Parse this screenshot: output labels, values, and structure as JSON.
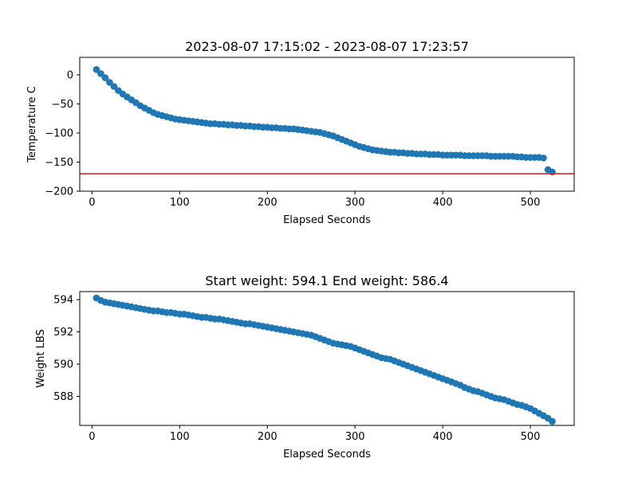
{
  "figure": {
    "background": "#ffffff"
  },
  "chart_data": [
    {
      "type": "scatter",
      "title": "2023-08-07 17:15:02 - 2023-08-07 17:23:57",
      "xlabel": "Elapsed Seconds",
      "ylabel": "Temperature C",
      "xlim": [
        -14,
        550
      ],
      "ylim": [
        -200,
        30
      ],
      "xticks": [
        0,
        100,
        200,
        300,
        400,
        500
      ],
      "yticks": [
        0,
        -50,
        -100,
        -150,
        -200
      ],
      "grid": false,
      "marker_color": "#1f77b4",
      "reference_line": {
        "y": -170,
        "color": "#d62728"
      },
      "series": [
        {
          "x": [
            5,
            10,
            15,
            20,
            25,
            30,
            35,
            40,
            45,
            50,
            55,
            60,
            65,
            70,
            75,
            80,
            85,
            90,
            95,
            100,
            105,
            110,
            115,
            120,
            125,
            130,
            135,
            140,
            145,
            150,
            155,
            160,
            165,
            170,
            175,
            180,
            185,
            190,
            195,
            200,
            205,
            210,
            215,
            220,
            225,
            230,
            235,
            240,
            245,
            250,
            255,
            260,
            265,
            270,
            275,
            280,
            285,
            290,
            295,
            300,
            305,
            310,
            315,
            320,
            325,
            330,
            335,
            340,
            345,
            350,
            355,
            360,
            365,
            370,
            375,
            380,
            385,
            390,
            395,
            400,
            405,
            410,
            415,
            420,
            425,
            430,
            435,
            440,
            445,
            450,
            455,
            460,
            465,
            470,
            475,
            480,
            485,
            490,
            495,
            500,
            505,
            510,
            515,
            520,
            525
          ],
          "y": [
            9,
            2,
            -5,
            -13,
            -20,
            -27,
            -33,
            -38,
            -43,
            -48,
            -53,
            -57,
            -61,
            -65,
            -68,
            -70,
            -72,
            -74,
            -76,
            -77,
            -78,
            -79,
            -80,
            -81,
            -82,
            -83,
            -84,
            -84,
            -85,
            -85,
            -86,
            -86,
            -87,
            -87,
            -88,
            -88,
            -89,
            -89,
            -90,
            -90,
            -91,
            -91,
            -92,
            -92,
            -93,
            -93,
            -94,
            -95,
            -96,
            -97,
            -98,
            -99,
            -101,
            -103,
            -105,
            -108,
            -111,
            -114,
            -117,
            -120,
            -123,
            -125,
            -127,
            -129,
            -130,
            -131,
            -132,
            -133,
            -133,
            -134,
            -134,
            -135,
            -135,
            -136,
            -136,
            -136,
            -137,
            -137,
            -137,
            -138,
            -138,
            -138,
            -138,
            -138,
            -139,
            -139,
            -139,
            -139,
            -139,
            -139,
            -140,
            -140,
            -140,
            -140,
            -140,
            -140,
            -141,
            -141,
            -142,
            -142,
            -142,
            -142,
            -143,
            -163,
            -167
          ]
        }
      ]
    },
    {
      "type": "scatter",
      "title": "Start weight: 594.1 End weight: 586.4",
      "xlabel": "Elapsed Seconds",
      "ylabel": "Weight LBS",
      "xlim": [
        -14,
        550
      ],
      "ylim": [
        586.2,
        594.5
      ],
      "xticks": [
        0,
        100,
        200,
        300,
        400,
        500
      ],
      "yticks": [
        594,
        592,
        590,
        588
      ],
      "grid": false,
      "marker_color": "#1f77b4",
      "series": [
        {
          "x": [
            5,
            10,
            15,
            20,
            25,
            30,
            35,
            40,
            45,
            50,
            55,
            60,
            65,
            70,
            75,
            80,
            85,
            90,
            95,
            100,
            105,
            110,
            115,
            120,
            125,
            130,
            135,
            140,
            145,
            150,
            155,
            160,
            165,
            170,
            175,
            180,
            185,
            190,
            195,
            200,
            205,
            210,
            215,
            220,
            225,
            230,
            235,
            240,
            245,
            250,
            255,
            260,
            265,
            270,
            275,
            280,
            285,
            290,
            295,
            300,
            305,
            310,
            315,
            320,
            325,
            330,
            335,
            340,
            345,
            350,
            355,
            360,
            365,
            370,
            375,
            380,
            385,
            390,
            395,
            400,
            405,
            410,
            415,
            420,
            425,
            430,
            435,
            440,
            445,
            450,
            455,
            460,
            465,
            470,
            475,
            480,
            485,
            490,
            495,
            500,
            505,
            510,
            515,
            520,
            525
          ],
          "y": [
            594.1,
            593.95,
            593.85,
            593.8,
            593.75,
            593.7,
            593.65,
            593.6,
            593.55,
            593.5,
            593.45,
            593.4,
            593.35,
            593.3,
            593.3,
            593.25,
            593.2,
            593.2,
            593.15,
            593.1,
            593.1,
            593.05,
            593.0,
            592.95,
            592.9,
            592.9,
            592.85,
            592.8,
            592.8,
            592.75,
            592.7,
            592.65,
            592.6,
            592.55,
            592.5,
            592.5,
            592.45,
            592.4,
            592.35,
            592.3,
            592.25,
            592.2,
            592.15,
            592.1,
            592.05,
            592.0,
            591.95,
            591.9,
            591.85,
            591.8,
            591.7,
            591.6,
            591.5,
            591.4,
            591.3,
            591.25,
            591.2,
            591.15,
            591.1,
            591.0,
            590.9,
            590.8,
            590.7,
            590.6,
            590.5,
            590.4,
            590.35,
            590.3,
            590.2,
            590.1,
            590.0,
            589.9,
            589.8,
            589.7,
            589.6,
            589.5,
            589.4,
            589.3,
            589.2,
            589.1,
            589.0,
            588.9,
            588.8,
            588.7,
            588.55,
            588.45,
            588.35,
            588.3,
            588.2,
            588.1,
            588.0,
            587.9,
            587.85,
            587.8,
            587.7,
            587.6,
            587.5,
            587.45,
            587.35,
            587.25,
            587.1,
            586.95,
            586.8,
            586.65,
            586.45
          ]
        }
      ]
    }
  ]
}
